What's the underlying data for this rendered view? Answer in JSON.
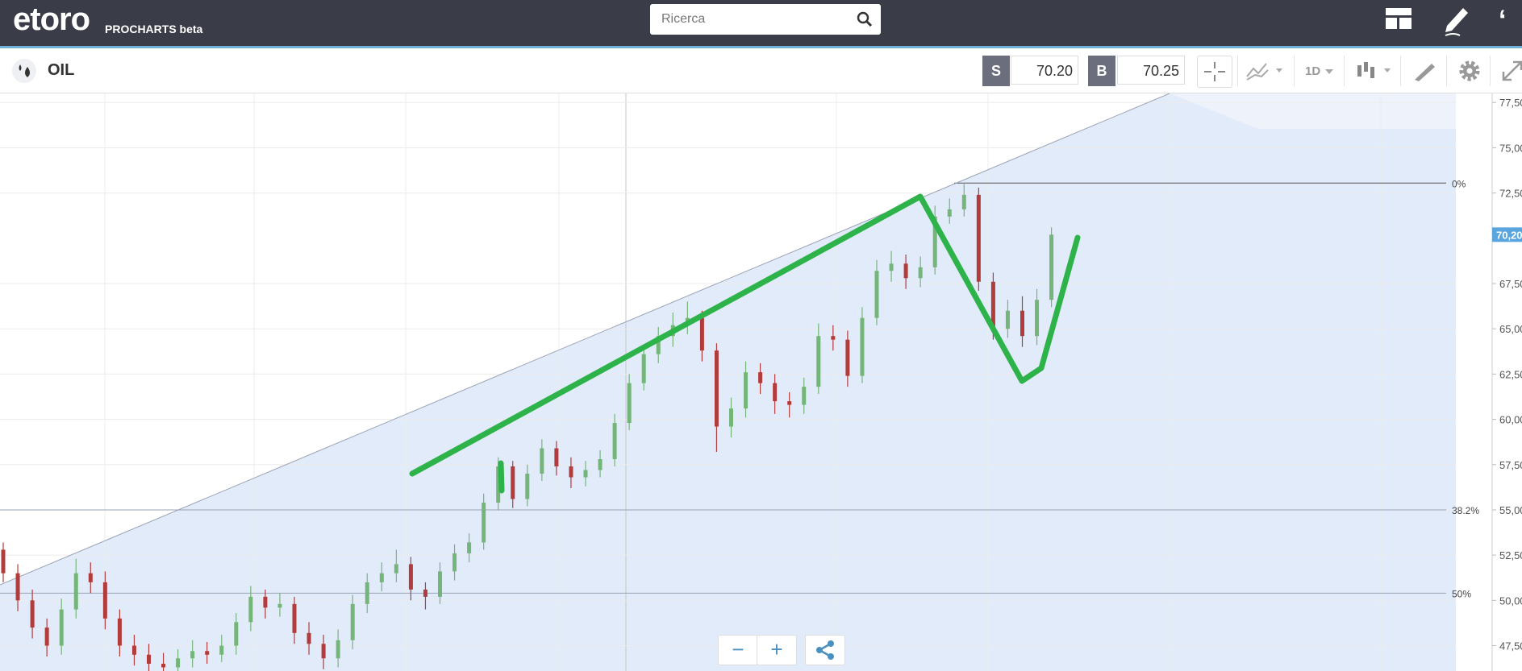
{
  "header": {
    "logo": "etoro",
    "product": "PROCHARTS beta",
    "search_placeholder": "Ricerca"
  },
  "toolbar": {
    "instrument": "OIL",
    "sell_label": "S",
    "sell_price": "70.20",
    "buy_label": "B",
    "buy_price": "70.25",
    "timeframe": "1D"
  },
  "zoom": {
    "minus": "−",
    "plus": "+"
  },
  "chart_data": {
    "type": "candlestick",
    "up_color": "#74b57a",
    "down_color": "#b23b3b",
    "open": [
      52.8,
      51.5,
      50.0,
      48.5,
      47.5,
      49.5,
      51.5,
      51.0,
      49.0,
      47.5,
      47.0,
      46.5,
      46.3,
      46.8,
      47.2,
      47.0,
      47.5,
      48.8,
      50.2,
      49.6,
      49.8,
      48.2,
      47.6,
      46.8,
      47.8,
      49.8,
      51.0,
      51.5,
      52.0,
      50.6,
      50.2,
      51.6,
      52.6,
      53.2,
      55.4,
      57.4,
      55.6,
      57.0,
      58.4,
      57.4,
      56.8,
      57.2,
      57.8,
      59.8,
      62.0,
      63.6,
      64.6,
      65.2,
      65.6,
      63.8,
      59.6,
      60.6,
      62.6,
      62.0,
      61.0,
      60.8,
      61.8,
      64.6,
      64.4,
      62.4,
      65.6,
      68.2,
      68.6,
      67.8,
      68.4,
      71.2,
      71.6,
      72.4,
      67.6,
      65.0,
      66.0,
      64.6,
      66.6
    ],
    "high": [
      53.2,
      52.0,
      50.6,
      49.0,
      50.1,
      52.3,
      52.1,
      51.6,
      49.5,
      48.1,
      47.6,
      47.1,
      47.3,
      47.8,
      47.7,
      48.1,
      49.3,
      50.8,
      50.6,
      50.4,
      50.2,
      48.8,
      48.1,
      48.4,
      50.3,
      51.5,
      52.1,
      52.8,
      52.4,
      51.0,
      52.1,
      53.1,
      53.7,
      55.9,
      57.9,
      57.7,
      57.5,
      58.9,
      58.8,
      57.9,
      57.7,
      58.3,
      60.3,
      62.5,
      64.1,
      65.1,
      65.9,
      66.5,
      66.0,
      64.2,
      61.2,
      63.2,
      63.1,
      62.5,
      61.5,
      62.3,
      65.3,
      65.2,
      64.9,
      66.2,
      68.8,
      69.3,
      69.1,
      69.0,
      71.8,
      72.2,
      73.0,
      72.8,
      68.1,
      66.6,
      66.8,
      67.2,
      70.6
    ],
    "low": [
      51.0,
      49.4,
      47.9,
      46.9,
      47.0,
      49.0,
      50.4,
      48.4,
      46.9,
      46.4,
      46.0,
      45.8,
      45.9,
      46.3,
      46.5,
      46.6,
      47.0,
      48.3,
      49.0,
      49.1,
      47.6,
      47.0,
      46.2,
      46.3,
      47.3,
      49.3,
      50.5,
      51.0,
      50.0,
      49.5,
      49.8,
      51.1,
      52.1,
      52.8,
      55.0,
      55.1,
      55.2,
      56.6,
      56.9,
      56.2,
      56.3,
      56.8,
      57.4,
      59.4,
      61.6,
      63.1,
      64.0,
      64.7,
      63.2,
      58.2,
      59.0,
      60.1,
      61.4,
      60.3,
      60.1,
      60.3,
      61.4,
      63.8,
      61.8,
      62.0,
      65.2,
      67.6,
      67.2,
      67.3,
      68.0,
      70.8,
      71.2,
      67.1,
      64.4,
      64.5,
      64.0,
      64.1,
      66.2
    ],
    "close": [
      51.5,
      50.0,
      48.5,
      47.5,
      49.5,
      51.5,
      51.0,
      49.0,
      47.5,
      47.0,
      46.5,
      46.3,
      46.8,
      47.2,
      47.0,
      47.5,
      48.8,
      50.2,
      49.6,
      49.8,
      48.2,
      47.6,
      46.8,
      47.8,
      49.8,
      51.0,
      51.5,
      52.0,
      50.6,
      50.2,
      51.6,
      52.6,
      53.2,
      55.4,
      57.4,
      55.6,
      57.0,
      58.4,
      57.4,
      56.8,
      57.2,
      57.8,
      59.8,
      62.0,
      63.6,
      64.6,
      65.2,
      65.6,
      63.8,
      59.6,
      60.6,
      62.6,
      62.0,
      61.0,
      60.8,
      61.8,
      64.6,
      64.4,
      62.4,
      65.6,
      68.2,
      68.6,
      67.8,
      68.4,
      71.2,
      71.6,
      72.4,
      67.6,
      65.0,
      66.0,
      64.6,
      66.6,
      70.2
    ],
    "ylim": [
      46.1,
      78.0
    ],
    "yticks": [
      {
        "value": 47.5,
        "label": "47,50"
      },
      {
        "value": 50,
        "label": "50,00"
      },
      {
        "value": 52.5,
        "label": "52,50"
      },
      {
        "value": 55,
        "label": "55,00"
      },
      {
        "value": 57.5,
        "label": "57,50"
      },
      {
        "value": 60,
        "label": "60,00"
      },
      {
        "value": 62.5,
        "label": "62,50"
      },
      {
        "value": 65,
        "label": "65,00"
      },
      {
        "value": 67.5,
        "label": "67,50"
      },
      {
        "value": 72.5,
        "label": "72,50"
      },
      {
        "value": 75,
        "label": "75,00"
      },
      {
        "value": 77.5,
        "label": "77,50"
      }
    ],
    "fib_levels": [
      {
        "value": 73.05,
        "label": "0%"
      },
      {
        "value": 55.0,
        "label": "38.2%"
      },
      {
        "value": 50.4,
        "label": "50%"
      }
    ],
    "current_price": {
      "value": 70.2,
      "label": "70,20"
    }
  }
}
